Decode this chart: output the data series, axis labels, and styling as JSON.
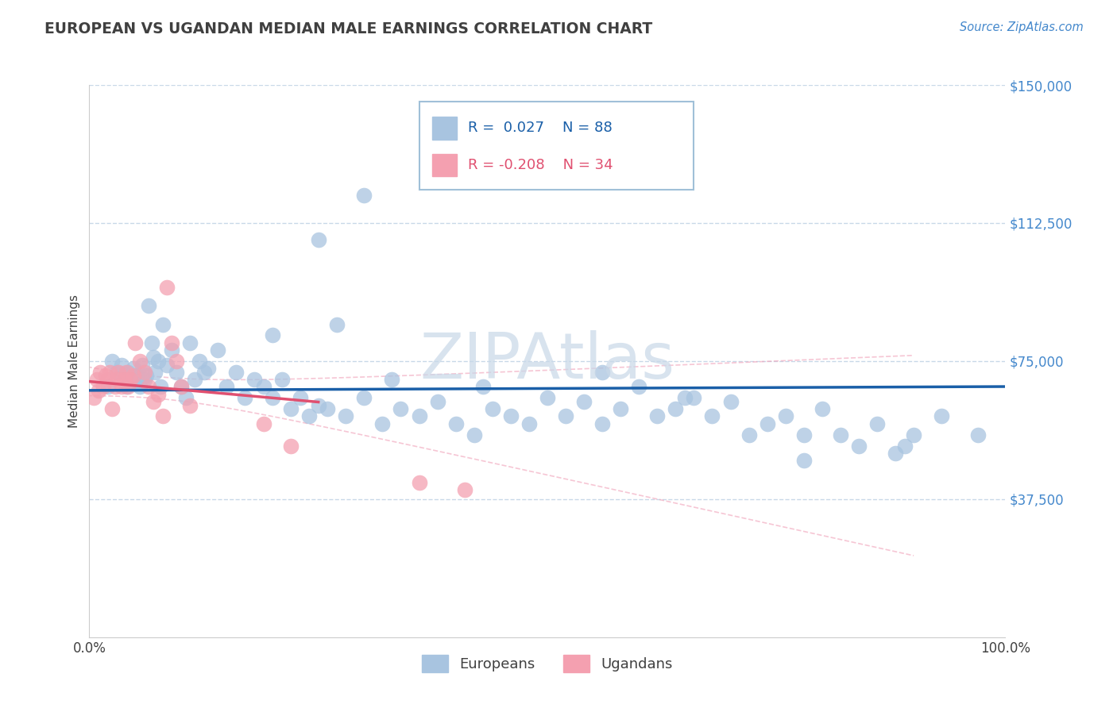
{
  "title": "EUROPEAN VS UGANDAN MEDIAN MALE EARNINGS CORRELATION CHART",
  "source_text": "Source: ZipAtlas.com",
  "ylabel": "Median Male Earnings",
  "xlim": [
    0,
    1.0
  ],
  "ylim": [
    0,
    150000
  ],
  "yticks": [
    0,
    37500,
    75000,
    112500,
    150000
  ],
  "ytick_labels": [
    "",
    "$37,500",
    "$75,000",
    "$112,500",
    "$150,000"
  ],
  "xtick_labels": [
    "0.0%",
    "100.0%"
  ],
  "r_european": 0.027,
  "n_european": 88,
  "r_ugandan": -0.208,
  "n_ugandan": 34,
  "european_color": "#a8c4e0",
  "ugandan_color": "#f4a0b0",
  "blue_line_color": "#1a5fa8",
  "pink_line_color": "#e05070",
  "pink_conf_color": "#f0a0b8",
  "grid_color": "#c8d8e8",
  "title_color": "#404040",
  "ylabel_color": "#404040",
  "watermark_text": "ZIPAtlas",
  "watermark_color": "#c8d8e8",
  "ytick_color": "#4488cc",
  "xtick_color": "#404040",
  "legend_border_color": "#a0c0d8",
  "legend_text_color_blue": "#1a5fa8",
  "legend_text_color_pink": "#e05070",
  "europeans_x": [
    0.02,
    0.025,
    0.03,
    0.035,
    0.04,
    0.042,
    0.045,
    0.048,
    0.05,
    0.052,
    0.055,
    0.058,
    0.06,
    0.062,
    0.065,
    0.068,
    0.07,
    0.072,
    0.075,
    0.078,
    0.08,
    0.085,
    0.09,
    0.095,
    0.1,
    0.105,
    0.11,
    0.115,
    0.12,
    0.125,
    0.13,
    0.14,
    0.15,
    0.16,
    0.17,
    0.18,
    0.19,
    0.2,
    0.21,
    0.22,
    0.23,
    0.24,
    0.25,
    0.26,
    0.28,
    0.3,
    0.32,
    0.34,
    0.36,
    0.38,
    0.4,
    0.42,
    0.44,
    0.46,
    0.48,
    0.5,
    0.52,
    0.54,
    0.56,
    0.58,
    0.6,
    0.62,
    0.64,
    0.66,
    0.68,
    0.7,
    0.72,
    0.74,
    0.76,
    0.78,
    0.8,
    0.82,
    0.84,
    0.86,
    0.88,
    0.9,
    0.3,
    0.25,
    0.2,
    0.27,
    0.33,
    0.43,
    0.56,
    0.65,
    0.78,
    0.89,
    0.93,
    0.97
  ],
  "europeans_y": [
    68000,
    75000,
    72000,
    74000,
    68000,
    72000,
    70000,
    73000,
    69000,
    71000,
    68000,
    74000,
    70000,
    71000,
    90000,
    80000,
    76000,
    72000,
    75000,
    68000,
    85000,
    74000,
    78000,
    72000,
    68000,
    65000,
    80000,
    70000,
    75000,
    72000,
    73000,
    78000,
    68000,
    72000,
    65000,
    70000,
    68000,
    65000,
    70000,
    62000,
    65000,
    60000,
    63000,
    62000,
    60000,
    65000,
    58000,
    62000,
    60000,
    64000,
    58000,
    55000,
    62000,
    60000,
    58000,
    65000,
    60000,
    64000,
    58000,
    62000,
    68000,
    60000,
    62000,
    65000,
    60000,
    64000,
    55000,
    58000,
    60000,
    55000,
    62000,
    55000,
    52000,
    58000,
    50000,
    55000,
    120000,
    108000,
    82000,
    85000,
    70000,
    68000,
    72000,
    65000,
    48000,
    52000,
    60000,
    55000
  ],
  "ugandans_x": [
    0.005,
    0.008,
    0.01,
    0.012,
    0.015,
    0.018,
    0.02,
    0.022,
    0.025,
    0.028,
    0.03,
    0.032,
    0.035,
    0.038,
    0.04,
    0.042,
    0.045,
    0.048,
    0.05,
    0.055,
    0.06,
    0.065,
    0.07,
    0.075,
    0.08,
    0.085,
    0.09,
    0.095,
    0.1,
    0.11,
    0.19,
    0.22,
    0.36,
    0.41
  ],
  "ugandans_y": [
    65000,
    70000,
    67000,
    72000,
    68000,
    71000,
    70000,
    72000,
    62000,
    68000,
    70000,
    72000,
    68000,
    70000,
    72000,
    68000,
    70000,
    71000,
    80000,
    75000,
    72000,
    68000,
    64000,
    66000,
    60000,
    95000,
    80000,
    75000,
    68000,
    63000,
    58000,
    52000,
    42000,
    40000
  ]
}
